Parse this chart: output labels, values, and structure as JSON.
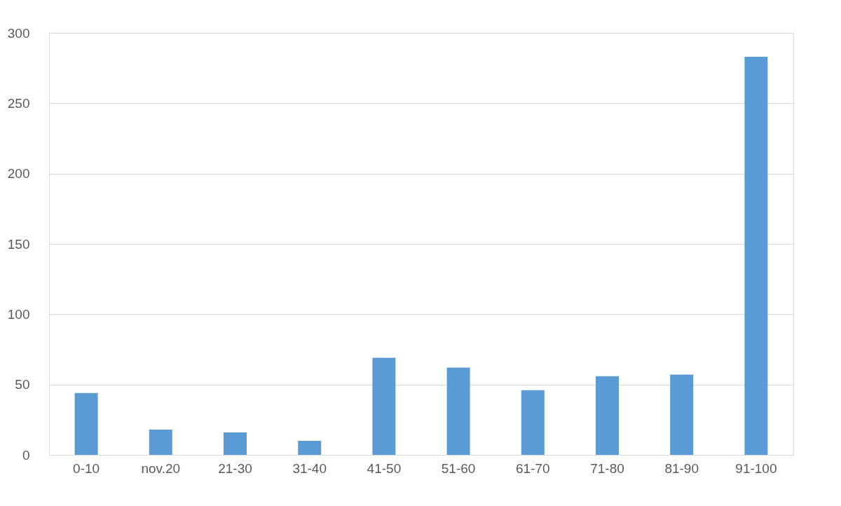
{
  "chart_data": {
    "type": "bar",
    "categories": [
      "0-10",
      "nov.20",
      "21-30",
      "31-40",
      "41-50",
      "51-60",
      "61-70",
      "71-80",
      "81-90",
      "91-100"
    ],
    "values": [
      44,
      18,
      16,
      10,
      69,
      62,
      46,
      56,
      57,
      283
    ],
    "color": "#5b9bd5",
    "ylim": [
      0,
      300
    ],
    "yticks": [
      0,
      50,
      100,
      150,
      200,
      250,
      300
    ],
    "grid": "y"
  }
}
